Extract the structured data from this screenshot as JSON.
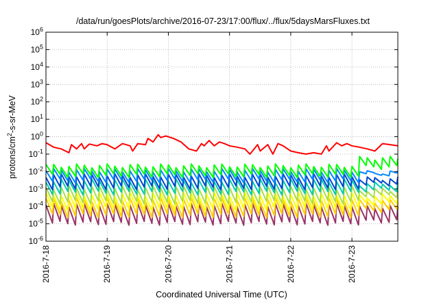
{
  "chart_data": {
    "type": "line",
    "title": "/data/run/goesPlots/archive/2016-07-23/17:00/flux/../flux/5daysMarsFluxes.txt",
    "xlabel": "Coordinated Universal Time (UTC)",
    "ylabel": {
      "pre": "protons/cm",
      "sup": "2",
      "post": "-s-sr-MeV"
    },
    "x_ticks": [
      "2016-7-18",
      "2016-7-19",
      "2016-7-20",
      "2016-7-21",
      "2016-7-22",
      "2016-7-23"
    ],
    "x_range": [
      "2016-07-18T00:00",
      "2016-07-23T18:00"
    ],
    "y_scale": "log",
    "y_range": [
      1e-06,
      1000000.0
    ],
    "y_ticks": [
      {
        "base": "10",
        "exp": "-6"
      },
      {
        "base": "10",
        "exp": "-5"
      },
      {
        "base": "10",
        "exp": "-4"
      },
      {
        "base": "10",
        "exp": "-3"
      },
      {
        "base": "10",
        "exp": "-2"
      },
      {
        "base": "10",
        "exp": "-1"
      },
      {
        "base": "10",
        "exp": "0"
      },
      {
        "base": "10",
        "exp": "1"
      },
      {
        "base": "10",
        "exp": "2"
      },
      {
        "base": "10",
        "exp": "3"
      },
      {
        "base": "10",
        "exp": "4"
      },
      {
        "base": "10",
        "exp": "5"
      },
      {
        "base": "10",
        "exp": "6"
      }
    ],
    "grid": true,
    "series": [
      {
        "color": "#ff0000",
        "x": [
          "2016-07-18T00:00",
          "2016-07-18T03:00",
          "2016-07-18T06:00",
          "2016-07-18T09:00",
          "2016-07-18T10:00",
          "2016-07-18T12:00",
          "2016-07-18T14:00",
          "2016-07-18T15:00",
          "2016-07-18T17:00",
          "2016-07-18T20:00",
          "2016-07-18T22:00",
          "2016-07-19T00:00",
          "2016-07-19T03:00",
          "2016-07-19T06:00",
          "2016-07-19T09:00",
          "2016-07-19T10:00",
          "2016-07-19T12:00",
          "2016-07-19T15:00",
          "2016-07-19T16:00",
          "2016-07-19T18:00",
          "2016-07-19T20:00",
          "2016-07-19T21:00",
          "2016-07-19T23:00",
          "2016-07-20T02:00",
          "2016-07-20T05:00",
          "2016-07-20T08:00",
          "2016-07-20T11:00",
          "2016-07-20T13:00",
          "2016-07-20T14:00",
          "2016-07-20T16:00",
          "2016-07-20T18:00",
          "2016-07-20T20:00",
          "2016-07-20T22:00",
          "2016-07-21T00:00",
          "2016-07-21T03:00",
          "2016-07-21T06:00",
          "2016-07-21T08:00",
          "2016-07-21T11:00",
          "2016-07-21T12:00",
          "2016-07-21T15:00",
          "2016-07-21T17:00",
          "2016-07-21T19:00",
          "2016-07-21T21:00",
          "2016-07-22T00:00",
          "2016-07-22T03:00",
          "2016-07-22T06:00",
          "2016-07-22T09:00",
          "2016-07-22T12:00",
          "2016-07-22T14:00",
          "2016-07-22T15:00",
          "2016-07-22T18:00",
          "2016-07-22T20:00",
          "2016-07-22T22:00",
          "2016-07-23T00:00",
          "2016-07-23T03:00",
          "2016-07-23T06:00",
          "2016-07-23T09:00",
          "2016-07-23T12:00",
          "2016-07-23T15:00",
          "2016-07-23T18:00"
        ],
        "y": [
          0.45,
          0.25,
          0.2,
          0.12,
          0.35,
          0.2,
          0.4,
          0.2,
          0.38,
          0.3,
          0.4,
          0.35,
          0.2,
          0.4,
          0.3,
          0.15,
          0.4,
          0.35,
          0.8,
          0.5,
          1.3,
          0.9,
          1.1,
          0.8,
          0.5,
          0.2,
          0.15,
          0.4,
          0.3,
          0.6,
          0.3,
          0.5,
          0.4,
          0.3,
          0.25,
          0.2,
          0.1,
          0.35,
          0.15,
          0.35,
          0.1,
          0.4,
          0.3,
          0.15,
          0.12,
          0.1,
          0.12,
          0.1,
          0.3,
          0.15,
          0.45,
          0.3,
          0.4,
          0.3,
          0.25,
          0.2,
          0.15,
          0.4,
          0.35,
          0.3
        ]
      },
      {
        "color": "#00ff00",
        "base_hi": 0.022,
        "base_lo": 0.006,
        "end_hi": 0.06,
        "end_lo": 0.018
      },
      {
        "color": "#0088ff",
        "base_hi": 0.012,
        "base_lo": 0.003,
        "end_hi": 0.009,
        "end_lo": 0.007
      },
      {
        "color": "#0044cc",
        "base_hi": 0.006,
        "base_lo": 0.0012,
        "end_hi": 0.004,
        "end_lo": 0.002
      },
      {
        "color": "#00ccaa",
        "base_hi": 0.003,
        "base_lo": 0.0006,
        "end_hi": 0.002,
        "end_lo": 0.0009
      },
      {
        "color": "#aadd44",
        "base_hi": 0.0012,
        "base_lo": 0.00018,
        "end_hi": 0.0009,
        "end_lo": 0.0004
      },
      {
        "color": "#ffff00",
        "base_hi": 0.0005,
        "base_lo": 7e-05,
        "end_hi": 0.0004,
        "end_lo": 0.00015
      },
      {
        "color": "#ffcc00",
        "base_hi": 0.00025,
        "base_lo": 3e-05,
        "end_hi": 0.0002,
        "end_lo": 6e-05
      },
      {
        "color": "#993366",
        "base_hi": 0.00012,
        "base_lo": 1.1e-05,
        "end_hi": 9e-05,
        "end_lo": 1.4e-05
      }
    ]
  }
}
